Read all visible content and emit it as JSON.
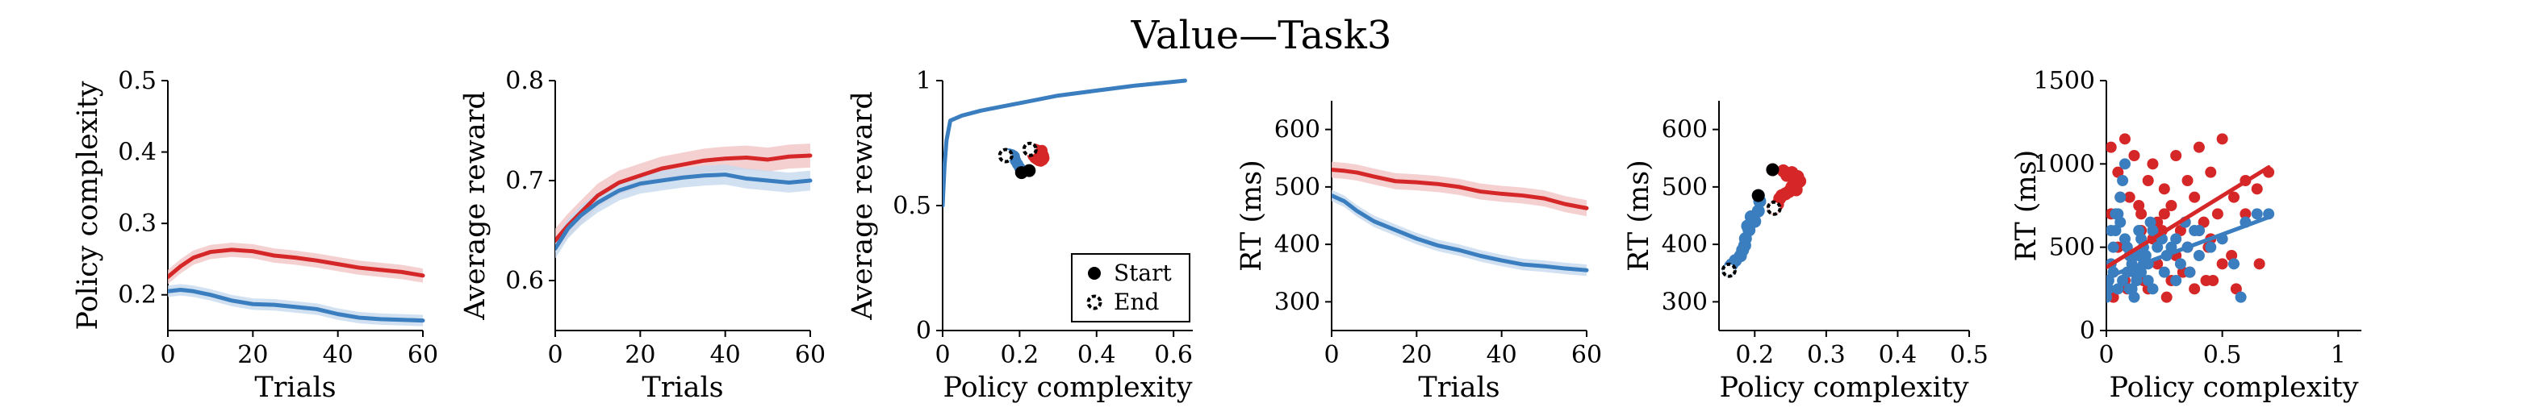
{
  "figure": {
    "title": "Value—Task3"
  },
  "colors": {
    "red": "#d62728",
    "blue": "#3a7ebf",
    "red_band": "#f2c4c6",
    "blue_band": "#c6d9ee"
  },
  "legend": {
    "start": "Start",
    "end": "End"
  },
  "chart_data": [
    {
      "id": "p1",
      "type": "line",
      "xlabel": "Trials",
      "ylabel": "Policy complexity",
      "xlim": [
        0,
        60
      ],
      "ylim": [
        0.15,
        0.5
      ],
      "xticks": [
        0,
        20,
        40,
        60
      ],
      "yticks": [
        0.2,
        0.3,
        0.4,
        0.5
      ],
      "yticklabels": [
        "0.2",
        "0.3",
        "0.4",
        "0.5"
      ],
      "series": [
        {
          "color": "red",
          "band": 0.01,
          "x": [
            0,
            3,
            6,
            10,
            15,
            20,
            25,
            30,
            35,
            40,
            45,
            50,
            55,
            60
          ],
          "y": [
            0.225,
            0.24,
            0.252,
            0.26,
            0.263,
            0.261,
            0.255,
            0.252,
            0.248,
            0.243,
            0.238,
            0.235,
            0.232,
            0.227
          ]
        },
        {
          "color": "blue",
          "band": 0.008,
          "x": [
            0,
            3,
            6,
            10,
            15,
            20,
            25,
            30,
            35,
            40,
            45,
            50,
            55,
            60
          ],
          "y": [
            0.205,
            0.207,
            0.205,
            0.2,
            0.192,
            0.187,
            0.186,
            0.183,
            0.18,
            0.173,
            0.168,
            0.166,
            0.165,
            0.164
          ]
        }
      ]
    },
    {
      "id": "p2",
      "type": "line",
      "xlabel": "Trials",
      "ylabel": "Average reward",
      "xlim": [
        0,
        60
      ],
      "ylim": [
        0.55,
        0.8
      ],
      "xticks": [
        0,
        20,
        40,
        60
      ],
      "yticks": [
        0.6,
        0.7,
        0.8
      ],
      "yticklabels": [
        "0.6",
        "0.7",
        "0.8"
      ],
      "series": [
        {
          "color": "red",
          "band": 0.012,
          "x": [
            0,
            3,
            6,
            10,
            15,
            20,
            25,
            30,
            35,
            40,
            45,
            50,
            55,
            60
          ],
          "y": [
            0.64,
            0.655,
            0.668,
            0.685,
            0.698,
            0.705,
            0.712,
            0.716,
            0.72,
            0.722,
            0.723,
            0.721,
            0.724,
            0.725
          ]
        },
        {
          "color": "blue",
          "band": 0.01,
          "x": [
            0,
            3,
            6,
            10,
            15,
            20,
            25,
            30,
            35,
            40,
            45,
            50,
            55,
            60
          ],
          "y": [
            0.632,
            0.652,
            0.665,
            0.678,
            0.69,
            0.697,
            0.7,
            0.703,
            0.705,
            0.706,
            0.702,
            0.7,
            0.698,
            0.7
          ]
        }
      ]
    },
    {
      "id": "p3",
      "type": "line+scatter",
      "xlabel": "Policy complexity",
      "ylabel": "Average reward",
      "xlim": [
        0,
        0.65
      ],
      "ylim": [
        0,
        1
      ],
      "xticks": [
        0,
        0.2,
        0.4,
        0.6
      ],
      "yticks": [
        0,
        0.5,
        1
      ],
      "xticklabels": [
        "0",
        "0.2",
        "0.4",
        "0.6"
      ],
      "yticklabels": [
        "0",
        "0.5",
        "1"
      ],
      "curve": {
        "color": "blue",
        "x": [
          0,
          0.005,
          0.01,
          0.02,
          0.05,
          0.1,
          0.2,
          0.3,
          0.4,
          0.5,
          0.6,
          0.63
        ],
        "y": [
          0.5,
          0.66,
          0.76,
          0.84,
          0.86,
          0.88,
          0.91,
          0.94,
          0.96,
          0.98,
          0.995,
          1.0
        ]
      },
      "red_cluster": {
        "x": [
          0.24,
          0.245,
          0.25,
          0.255,
          0.26,
          0.262,
          0.263,
          0.26,
          0.255,
          0.25,
          0.245,
          0.24,
          0.235,
          0.24,
          0.25,
          0.258
        ],
        "y": [
          0.725,
          0.722,
          0.718,
          0.712,
          0.705,
          0.698,
          0.69,
          0.683,
          0.678,
          0.68,
          0.685,
          0.69,
          0.7,
          0.71,
          0.695,
          0.72
        ]
      },
      "blue_cluster": {
        "x": [
          0.205,
          0.2,
          0.195,
          0.19,
          0.187,
          0.186,
          0.183,
          0.18,
          0.175,
          0.172,
          0.168,
          0.166,
          0.165
        ],
        "y": [
          0.632,
          0.652,
          0.665,
          0.678,
          0.69,
          0.697,
          0.7,
          0.703,
          0.705,
          0.706,
          0.702,
          0.7,
          0.698
        ]
      },
      "start_points": [
        {
          "x": 0.225,
          "y": 0.64
        },
        {
          "x": 0.205,
          "y": 0.632
        }
      ],
      "end_points": [
        {
          "x": 0.227,
          "y": 0.725
        },
        {
          "x": 0.164,
          "y": 0.7
        }
      ]
    },
    {
      "id": "p4",
      "type": "line",
      "xlabel": "Trials",
      "ylabel": "RT (ms)",
      "xlim": [
        0,
        60
      ],
      "ylim": [
        250,
        650
      ],
      "xticks": [
        0,
        20,
        40,
        60
      ],
      "yticks": [
        300,
        400,
        500,
        600
      ],
      "yticklabels": [
        "300",
        "400",
        "500",
        "600"
      ],
      "series": [
        {
          "color": "red",
          "band": 14,
          "x": [
            0,
            3,
            6,
            10,
            15,
            20,
            25,
            30,
            35,
            40,
            45,
            50,
            55,
            60
          ],
          "y": [
            530,
            528,
            525,
            518,
            510,
            508,
            505,
            500,
            492,
            488,
            485,
            480,
            470,
            463
          ]
        },
        {
          "color": "blue",
          "band": 10,
          "x": [
            0,
            3,
            6,
            10,
            15,
            20,
            25,
            30,
            35,
            40,
            45,
            50,
            55,
            60
          ],
          "y": [
            485,
            475,
            458,
            440,
            425,
            410,
            398,
            390,
            380,
            372,
            365,
            362,
            358,
            355
          ]
        }
      ]
    },
    {
      "id": "p5",
      "type": "scatter",
      "xlabel": "Policy complexity",
      "ylabel": "RT (ms)",
      "xlim": [
        0.15,
        0.5
      ],
      "ylim": [
        250,
        650
      ],
      "xticks": [
        0.2,
        0.3,
        0.4,
        0.5
      ],
      "yticks": [
        300,
        400,
        500,
        600
      ],
      "xticklabels": [
        "0.2",
        "0.3",
        "0.4",
        "0.5"
      ],
      "yticklabels": [
        "300",
        "400",
        "500",
        "600"
      ],
      "red_points": {
        "x": [
          0.225,
          0.24,
          0.252,
          0.26,
          0.263,
          0.261,
          0.255,
          0.252,
          0.248,
          0.243,
          0.238,
          0.235,
          0.232,
          0.227,
          0.245,
          0.258
        ],
        "y": [
          530,
          528,
          525,
          518,
          510,
          508,
          505,
          500,
          492,
          488,
          485,
          480,
          470,
          463,
          520,
          495
        ]
      },
      "blue_points": {
        "x": [
          0.205,
          0.207,
          0.205,
          0.2,
          0.192,
          0.187,
          0.186,
          0.183,
          0.18,
          0.173,
          0.168,
          0.166,
          0.165,
          0.164,
          0.195,
          0.19
        ],
        "y": [
          485,
          475,
          458,
          440,
          425,
          410,
          398,
          390,
          380,
          372,
          365,
          362,
          358,
          355,
          448,
          432
        ]
      },
      "start_points": [
        {
          "x": 0.225,
          "y": 530
        },
        {
          "x": 0.205,
          "y": 485
        }
      ],
      "end_points": [
        {
          "x": 0.227,
          "y": 463
        },
        {
          "x": 0.164,
          "y": 355
        }
      ]
    },
    {
      "id": "p6",
      "type": "scatter+fit",
      "xlabel": "Policy complexity",
      "ylabel": "RT (ms)",
      "xlim": [
        0,
        1.1
      ],
      "ylim": [
        0,
        1500
      ],
      "xticks": [
        0,
        0.5,
        1
      ],
      "yticks": [
        0,
        500,
        1000,
        1500
      ],
      "xticklabels": [
        "0",
        "0.5",
        "1"
      ],
      "yticklabels": [
        "0",
        "500",
        "1000",
        "1500"
      ],
      "red_points": {
        "x": [
          0.02,
          0.05,
          0.08,
          0.1,
          0.12,
          0.15,
          0.18,
          0.2,
          0.22,
          0.25,
          0.28,
          0.3,
          0.32,
          0.35,
          0.38,
          0.4,
          0.42,
          0.45,
          0.48,
          0.5,
          0.55,
          0.6,
          0.65,
          0.7,
          0.05,
          0.1,
          0.15,
          0.2,
          0.25,
          0.3,
          0.35,
          0.4,
          0.45,
          0.5,
          0.08,
          0.12,
          0.18,
          0.22,
          0.28,
          0.33,
          0.38,
          0.43,
          0.6,
          0.02,
          0.06,
          0.14,
          0.24,
          0.34,
          0.44,
          0.54,
          0.03,
          0.09,
          0.16,
          0.26,
          0.36,
          0.46,
          0.56,
          0.66
        ],
        "y": [
          1100,
          950,
          1150,
          800,
          1050,
          700,
          900,
          1000,
          650,
          850,
          750,
          1050,
          600,
          900,
          800,
          1100,
          650,
          950,
          700,
          1150,
          800,
          900,
          850,
          950,
          500,
          450,
          600,
          550,
          700,
          450,
          500,
          600,
          550,
          400,
          300,
          350,
          250,
          400,
          300,
          350,
          250,
          300,
          700,
          700,
          800,
          750,
          600,
          650,
          500,
          450,
          200,
          250,
          300,
          200,
          350,
          300,
          250,
          400
        ]
      },
      "blue_points": {
        "x": [
          0.0,
          0.01,
          0.02,
          0.03,
          0.04,
          0.05,
          0.06,
          0.07,
          0.08,
          0.09,
          0.1,
          0.11,
          0.12,
          0.13,
          0.14,
          0.15,
          0.16,
          0.17,
          0.18,
          0.19,
          0.2,
          0.22,
          0.24,
          0.26,
          0.28,
          0.3,
          0.32,
          0.34,
          0.36,
          0.38,
          0.4,
          0.45,
          0.5,
          0.55,
          0.58,
          0.6,
          0.65,
          0.7,
          0.01,
          0.03,
          0.05,
          0.07,
          0.09,
          0.11,
          0.13,
          0.15,
          0.02,
          0.04,
          0.06,
          0.08,
          0.1,
          0.12,
          0.14,
          0.16,
          0.18,
          0.2,
          0.25,
          0.3,
          0.35,
          0.4
        ],
        "y": [
          200,
          300,
          400,
          500,
          600,
          700,
          800,
          900,
          1000,
          500,
          450,
          400,
          350,
          300,
          600,
          550,
          500,
          450,
          400,
          650,
          600,
          500,
          550,
          450,
          500,
          550,
          400,
          650,
          350,
          600,
          450,
          500,
          550,
          400,
          200,
          650,
          700,
          700,
          250,
          350,
          250,
          300,
          350,
          250,
          300,
          350,
          600,
          700,
          650,
          550,
          250,
          200,
          450,
          400,
          300,
          250,
          350,
          300,
          500,
          600
        ]
      },
      "red_fit": {
        "x": [
          0,
          0.7
        ],
        "y": [
          380,
          980
        ]
      },
      "blue_fit": {
        "x": [
          0,
          0.7
        ],
        "y": [
          320,
          680
        ]
      }
    }
  ]
}
